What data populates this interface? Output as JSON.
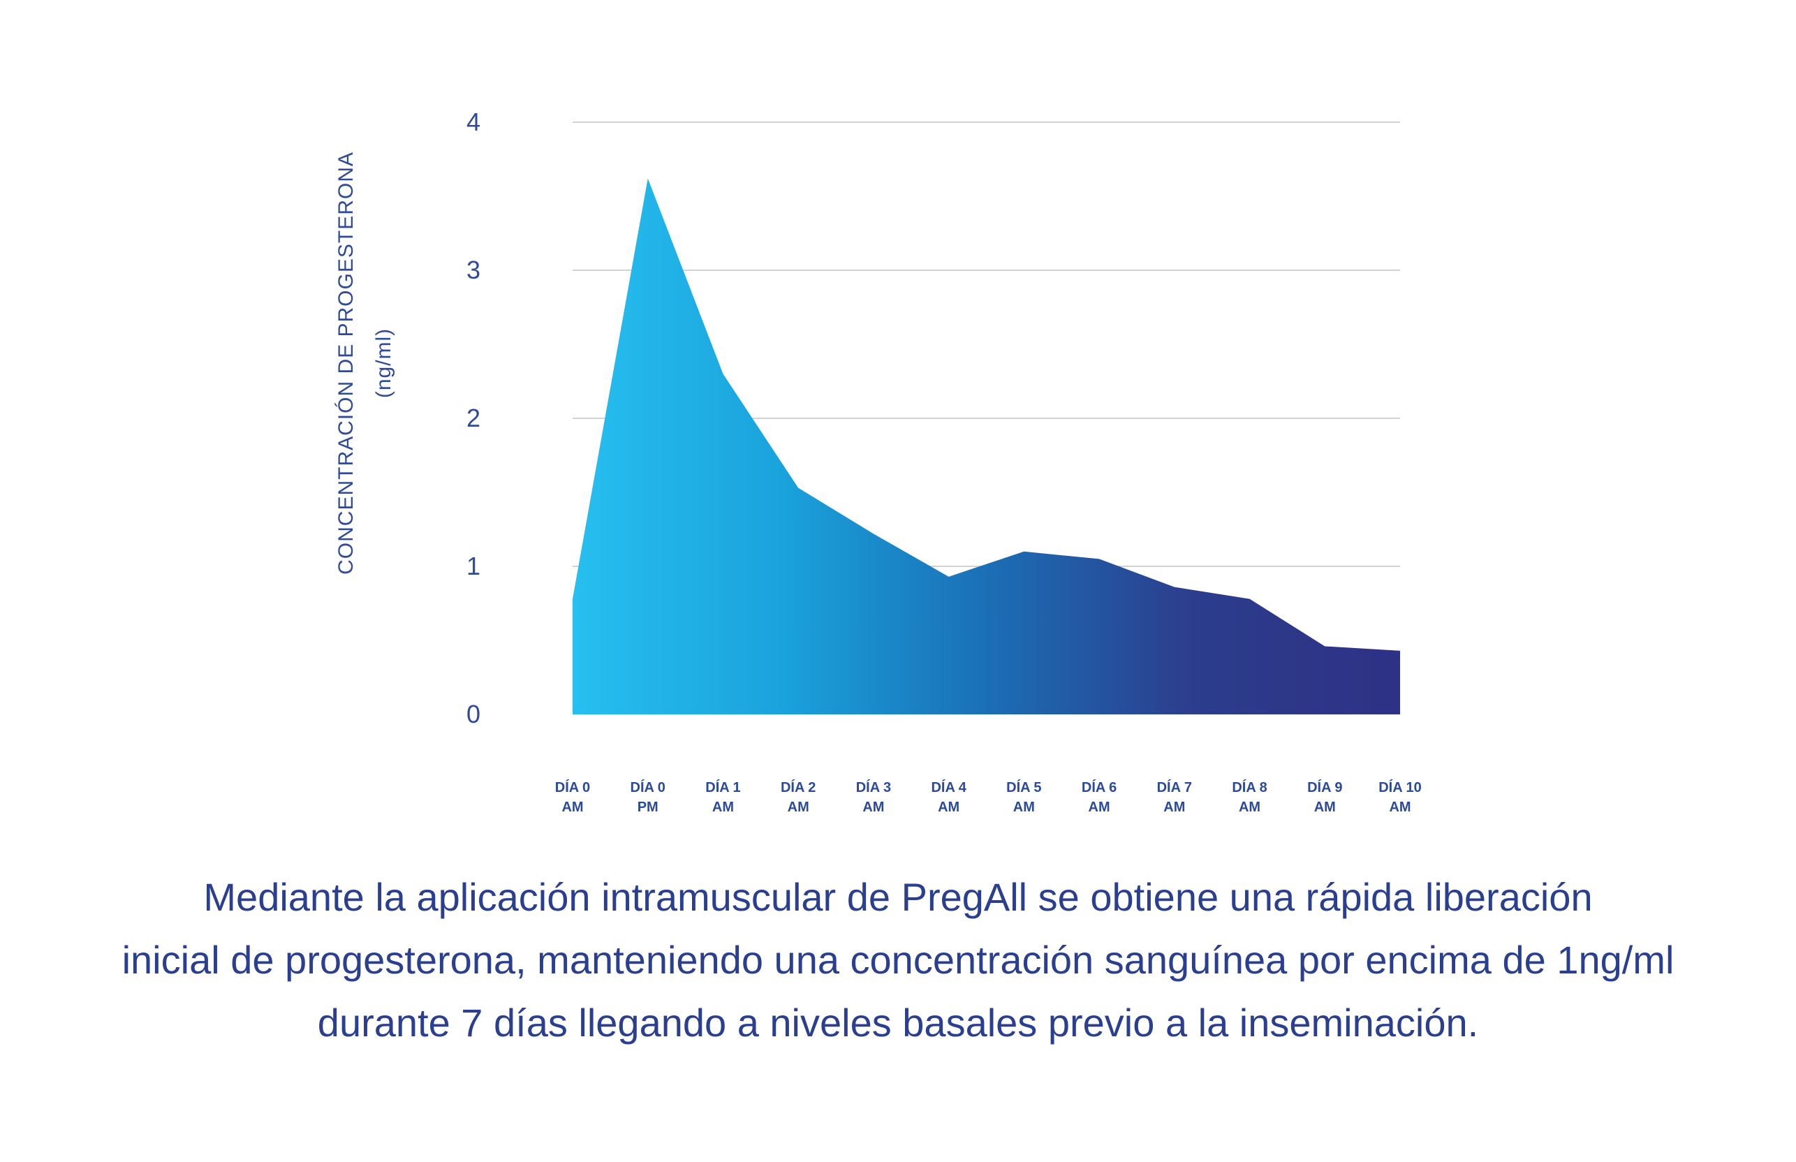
{
  "chart_data": {
    "type": "area",
    "categories": [
      [
        "DÍA 0",
        "AM"
      ],
      [
        "DÍA 0",
        "PM"
      ],
      [
        "DÍA 1",
        "AM"
      ],
      [
        "DÍA 2",
        "AM"
      ],
      [
        "DÍA 3",
        "AM"
      ],
      [
        "DÍA 4",
        "AM"
      ],
      [
        "DÍA 5",
        "AM"
      ],
      [
        "DÍA 6",
        "AM"
      ],
      [
        "DÍA 7",
        "AM"
      ],
      [
        "DÍA 8",
        "AM"
      ],
      [
        "DÍA 9",
        "AM"
      ],
      [
        "DÍA 10",
        "AM"
      ]
    ],
    "values": [
      0.78,
      3.62,
      2.3,
      1.53,
      1.22,
      0.93,
      1.1,
      1.05,
      0.86,
      0.78,
      0.46,
      0.43
    ],
    "ylabel_line1": "CONCENTRACIÓN DE PROGESTERONA",
    "ylabel_line2": "(ng/ml)",
    "yticks": [
      "0",
      "1",
      "2",
      "3",
      "4"
    ],
    "ylim": [
      0,
      4
    ],
    "grid": true,
    "gradient_colors": [
      "#27bff0",
      "#1aa3dc",
      "#1b6fb6",
      "#2c3d8c",
      "#2e3185"
    ]
  },
  "caption": {
    "line1": "Mediante la aplicación intramuscular de PregAll se obtiene una rápida liberación",
    "line2": "inicial de progesterona, manteniendo una concentración sanguínea por encima de 1ng/ml",
    "line3": "durante 7 días llegando a niveles basales previo a la inseminación."
  }
}
